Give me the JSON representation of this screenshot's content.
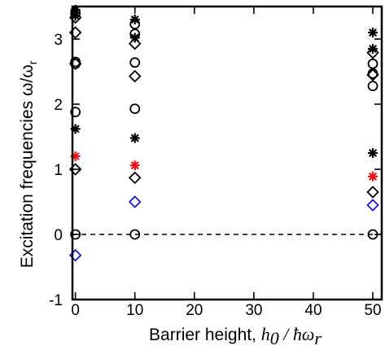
{
  "chart_data": {
    "type": "scatter",
    "title": "",
    "xlabel": {
      "prefix": "Barrier height, ",
      "math": "h",
      "math_sub": "0",
      "math_mid": " / ",
      "math_hbar": "ħ",
      "math_omega": "ω",
      "math_sub2": "r"
    },
    "ylabel": {
      "text": "Excitation frequencies ω/ω",
      "sub": "r"
    },
    "xlim": [
      -0.5,
      51.5
    ],
    "ylim": [
      -1,
      3.5
    ],
    "x_axis": {
      "ticks": [
        0,
        10,
        20,
        30,
        40,
        50
      ],
      "tick_labels": [
        "0",
        "10",
        "20",
        "30",
        "40",
        "50"
      ]
    },
    "y_axis": {
      "ticks": [
        -1,
        0,
        1,
        2,
        3
      ],
      "tick_labels": [
        "-1",
        "0",
        "1",
        "2",
        "3"
      ]
    },
    "reference_line": {
      "y": 0,
      "style": "dashed",
      "color": "#000000"
    },
    "grid": false,
    "legend": "none",
    "series": [
      {
        "marker": "circle",
        "color": "#000000",
        "points": [
          {
            "x": 0,
            "y": 0
          },
          {
            "x": 0,
            "y": 1.88
          },
          {
            "x": 0,
            "y": 2.62
          },
          {
            "x": 0,
            "y": 2.65
          },
          {
            "x": 0,
            "y": 3.4
          },
          {
            "x": 10,
            "y": 0
          },
          {
            "x": 10,
            "y": 1.93
          },
          {
            "x": 10,
            "y": 2.64
          },
          {
            "x": 10,
            "y": 3.08
          },
          {
            "x": 10,
            "y": 3.23
          },
          {
            "x": 50,
            "y": 0
          },
          {
            "x": 50,
            "y": 2.28
          },
          {
            "x": 50,
            "y": 2.47
          },
          {
            "x": 50,
            "y": 2.62
          }
        ]
      },
      {
        "marker": "diamond",
        "color": "#000000",
        "points": [
          {
            "x": 0,
            "y": 1.0
          },
          {
            "x": 0,
            "y": 2.62
          },
          {
            "x": 0,
            "y": 3.1
          },
          {
            "x": 0,
            "y": 3.33
          },
          {
            "x": 10,
            "y": 0.87
          },
          {
            "x": 10,
            "y": 2.43
          },
          {
            "x": 10,
            "y": 2.93
          },
          {
            "x": 50,
            "y": 0.65
          },
          {
            "x": 50,
            "y": 2.45
          },
          {
            "x": 50,
            "y": 2.79
          }
        ]
      },
      {
        "marker": "diamond",
        "color": "#1a1ad0",
        "points": [
          {
            "x": 0,
            "y": -0.32
          },
          {
            "x": 10,
            "y": 0.5
          },
          {
            "x": 50,
            "y": 0.45
          }
        ]
      },
      {
        "marker": "asterisk",
        "color": "#000000",
        "points": [
          {
            "x": 0,
            "y": 1.62
          },
          {
            "x": 0,
            "y": 3.36
          },
          {
            "x": 0,
            "y": 3.45
          },
          {
            "x": 10,
            "y": 1.48
          },
          {
            "x": 10,
            "y": 3.02
          },
          {
            "x": 10,
            "y": 3.3
          },
          {
            "x": 50,
            "y": 1.25
          },
          {
            "x": 50,
            "y": 2.85
          },
          {
            "x": 50,
            "y": 3.1
          }
        ]
      },
      {
        "marker": "asterisk",
        "color": "#e8141a",
        "points": [
          {
            "x": 0,
            "y": 1.2
          },
          {
            "x": 10,
            "y": 1.06
          },
          {
            "x": 50,
            "y": 0.89
          }
        ]
      }
    ]
  }
}
